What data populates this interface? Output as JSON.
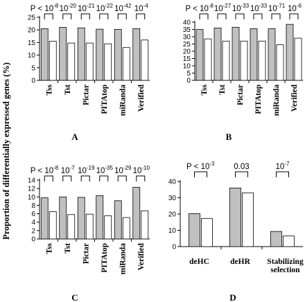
{
  "figure": {
    "ylabel": "Proportion of differentially expressed genes (%)",
    "colors": {
      "filled": "#c0c0c0",
      "open": "#ffffff",
      "stroke": "#000000"
    }
  },
  "chart_data": [
    {
      "type": "bar",
      "panel": "A",
      "categories": [
        "Tss",
        "Tst",
        "Pictar",
        "PITAtop",
        "miRanda",
        "Verified"
      ],
      "series": [
        {
          "values": [
            20.5,
            21,
            20.8,
            20.3,
            20.2,
            20.5
          ]
        },
        {
          "values": [
            15.5,
            14.8,
            14.8,
            14.5,
            13,
            16
          ]
        }
      ],
      "ylim": [
        0,
        25
      ],
      "yticks": [
        0,
        5,
        10,
        15,
        20,
        25
      ],
      "grid": false,
      "pvalue_prefix": "P <",
      "pvalues": [
        {
          "base": "10",
          "exp": "-8"
        },
        {
          "base": "10",
          "exp": "-20"
        },
        {
          "base": "10",
          "exp": "-21"
        },
        {
          "base": "10",
          "exp": "-22"
        },
        {
          "base": "10",
          "exp": "-42"
        },
        {
          "base": "10",
          "exp": "-4"
        }
      ]
    },
    {
      "type": "bar",
      "panel": "B",
      "categories": [
        "Tss",
        "Tst",
        "Pictar",
        "PITAtop",
        "miRanda",
        "Verified"
      ],
      "series": [
        {
          "values": [
            35,
            36,
            36.5,
            35.5,
            35.5,
            38.5
          ]
        },
        {
          "values": [
            28.5,
            27,
            27,
            27,
            24.5,
            29
          ]
        }
      ],
      "ylim": [
        0,
        40
      ],
      "yticks": [
        0,
        5,
        10,
        15,
        20,
        25,
        30,
        35,
        40
      ],
      "grid": false,
      "pvalue_prefix": "P <",
      "pvalues": [
        {
          "base": "10",
          "exp": "-8"
        },
        {
          "base": "10",
          "exp": "-27"
        },
        {
          "base": "10",
          "exp": "-33"
        },
        {
          "base": "10",
          "exp": "-33"
        },
        {
          "base": "10",
          "exp": "-71"
        },
        {
          "base": "10",
          "exp": "-6"
        }
      ]
    },
    {
      "type": "bar",
      "panel": "C",
      "categories": [
        "Tss",
        "Tst",
        "Pictar",
        "PITAtop",
        "miRanda",
        "Verified"
      ],
      "series": [
        {
          "values": [
            9.8,
            10,
            9.9,
            10.3,
            9.1,
            12.3
          ]
        },
        {
          "values": [
            6.5,
            5.8,
            5.9,
            5.5,
            5.1,
            6.7
          ]
        }
      ],
      "ylim": [
        0,
        14
      ],
      "yticks": [
        0,
        2,
        4,
        6,
        8,
        10,
        12,
        14
      ],
      "grid": false,
      "pvalue_prefix": "P <",
      "pvalues": [
        {
          "base": "10",
          "exp": "-8"
        },
        {
          "base": "10",
          "exp": "-7"
        },
        {
          "base": "10",
          "exp": "-19"
        },
        {
          "base": "10",
          "exp": "-35"
        },
        {
          "base": "10",
          "exp": "-29"
        },
        {
          "base": "10",
          "exp": "-10"
        }
      ]
    },
    {
      "type": "bar",
      "panel": "D",
      "categories": [
        "deHC",
        "deHR",
        "Stabilizing selection"
      ],
      "categories_lines": [
        [
          "deHC"
        ],
        [
          "deHR"
        ],
        [
          "Stabilizing",
          "selection"
        ]
      ],
      "series": [
        {
          "values": [
            20.3,
            36,
            9.3
          ]
        },
        {
          "values": [
            17.3,
            33,
            6.5
          ]
        }
      ],
      "ylim": [
        0,
        40
      ],
      "yticks": [
        0,
        10,
        20,
        30,
        40
      ],
      "grid": false,
      "pvalue_prefix": "P <",
      "pvalues": [
        {
          "base": "10",
          "exp": "-3"
        },
        {
          "base": "0.03",
          "exp": ""
        },
        {
          "base": "10",
          "exp": "-7"
        }
      ]
    }
  ]
}
